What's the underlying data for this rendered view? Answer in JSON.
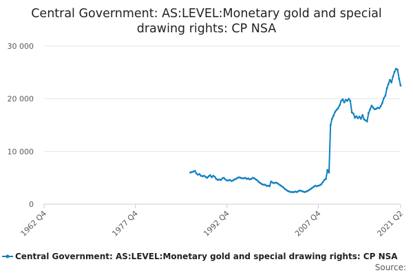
{
  "chart_data": {
    "type": "line",
    "title_lines": [
      "Central Government: AS:LEVEL:Monetary gold and special",
      "drawing rights: CP NSA"
    ],
    "xlabel": "",
    "ylabel": "",
    "x_range": [
      1962.75,
      2021.25
    ],
    "x_ticks": [
      {
        "label": "1962 Q4",
        "value": 1962.75
      },
      {
        "label": "1977 Q4",
        "value": 1977.75
      },
      {
        "label": "1992 Q4",
        "value": 1992.75
      },
      {
        "label": "2007 Q4",
        "value": 2007.75
      },
      {
        "label": "2021 Q2",
        "value": 2021.25
      }
    ],
    "ylim": [
      0,
      30000
    ],
    "y_ticks": [
      {
        "label": "0",
        "value": 0
      },
      {
        "label": "10 000",
        "value": 10000
      },
      {
        "label": "20 000",
        "value": 20000
      },
      {
        "label": "30 000",
        "value": 30000
      }
    ],
    "grid": "horizontal",
    "legend_position": "bottom",
    "series": [
      {
        "name": "Central Government: AS:LEVEL:Monetary gold and special drawing rights: CP NSA",
        "color": "#0f7fc0",
        "points": [
          [
            1986.75,
            6000
          ],
          [
            1987.0,
            6100
          ],
          [
            1987.25,
            6200
          ],
          [
            1987.5,
            6300
          ],
          [
            1987.75,
            5800
          ],
          [
            1988.0,
            5600
          ],
          [
            1988.25,
            5700
          ],
          [
            1988.5,
            5400
          ],
          [
            1988.75,
            5300
          ],
          [
            1989.0,
            5400
          ],
          [
            1989.25,
            5200
          ],
          [
            1989.5,
            5000
          ],
          [
            1989.75,
            5300
          ],
          [
            1990.0,
            5500
          ],
          [
            1990.25,
            5100
          ],
          [
            1990.5,
            5400
          ],
          [
            1990.75,
            5200
          ],
          [
            1991.0,
            4800
          ],
          [
            1991.25,
            4600
          ],
          [
            1991.5,
            4700
          ],
          [
            1991.75,
            4600
          ],
          [
            1992.0,
            4900
          ],
          [
            1992.25,
            5000
          ],
          [
            1992.5,
            4700
          ],
          [
            1992.75,
            4500
          ],
          [
            1993.0,
            4500
          ],
          [
            1993.25,
            4600
          ],
          [
            1993.5,
            4400
          ],
          [
            1993.75,
            4500
          ],
          [
            1994.0,
            4700
          ],
          [
            1994.25,
            4800
          ],
          [
            1994.5,
            5000
          ],
          [
            1994.75,
            5100
          ],
          [
            1995.0,
            5000
          ],
          [
            1995.25,
            4900
          ],
          [
            1995.5,
            4900
          ],
          [
            1995.75,
            5000
          ],
          [
            1996.0,
            4800
          ],
          [
            1996.25,
            4900
          ],
          [
            1996.5,
            4700
          ],
          [
            1996.75,
            4800
          ],
          [
            1997.0,
            5000
          ],
          [
            1997.25,
            4900
          ],
          [
            1997.5,
            4700
          ],
          [
            1997.75,
            4500
          ],
          [
            1998.0,
            4200
          ],
          [
            1998.25,
            4000
          ],
          [
            1998.5,
            3800
          ],
          [
            1998.75,
            3700
          ],
          [
            1999.0,
            3700
          ],
          [
            1999.25,
            3500
          ],
          [
            1999.5,
            3500
          ],
          [
            1999.75,
            3400
          ],
          [
            2000.0,
            4300
          ],
          [
            2000.25,
            4100
          ],
          [
            2000.5,
            4000
          ],
          [
            2000.75,
            4100
          ],
          [
            2001.0,
            4000
          ],
          [
            2001.25,
            3800
          ],
          [
            2001.5,
            3600
          ],
          [
            2001.75,
            3400
          ],
          [
            2002.0,
            3200
          ],
          [
            2002.25,
            2900
          ],
          [
            2002.5,
            2700
          ],
          [
            2002.75,
            2500
          ],
          [
            2003.0,
            2400
          ],
          [
            2003.25,
            2300
          ],
          [
            2003.5,
            2300
          ],
          [
            2003.75,
            2300
          ],
          [
            2004.0,
            2400
          ],
          [
            2004.25,
            2300
          ],
          [
            2004.5,
            2500
          ],
          [
            2004.75,
            2600
          ],
          [
            2005.0,
            2500
          ],
          [
            2005.25,
            2400
          ],
          [
            2005.5,
            2300
          ],
          [
            2005.75,
            2400
          ],
          [
            2006.0,
            2500
          ],
          [
            2006.25,
            2700
          ],
          [
            2006.5,
            2900
          ],
          [
            2006.75,
            3100
          ],
          [
            2007.0,
            3300
          ],
          [
            2007.25,
            3500
          ],
          [
            2007.5,
            3400
          ],
          [
            2007.75,
            3500
          ],
          [
            2008.0,
            3600
          ],
          [
            2008.25,
            3800
          ],
          [
            2008.5,
            4200
          ],
          [
            2008.75,
            4600
          ],
          [
            2009.0,
            4800
          ],
          [
            2009.25,
            6500
          ],
          [
            2009.5,
            6000
          ],
          [
            2009.75,
            15000
          ],
          [
            2010.0,
            16200
          ],
          [
            2010.25,
            16800
          ],
          [
            2010.5,
            17500
          ],
          [
            2010.75,
            17900
          ],
          [
            2011.0,
            18200
          ],
          [
            2011.25,
            18800
          ],
          [
            2011.5,
            19600
          ],
          [
            2011.75,
            19900
          ],
          [
            2012.0,
            19300
          ],
          [
            2012.25,
            19800
          ],
          [
            2012.5,
            19600
          ],
          [
            2012.75,
            20000
          ],
          [
            2013.0,
            19600
          ],
          [
            2013.25,
            17400
          ],
          [
            2013.5,
            17200
          ],
          [
            2013.75,
            16400
          ],
          [
            2014.0,
            16700
          ],
          [
            2014.25,
            16300
          ],
          [
            2014.5,
            16600
          ],
          [
            2014.75,
            16200
          ],
          [
            2015.0,
            16900
          ],
          [
            2015.25,
            16100
          ],
          [
            2015.5,
            15900
          ],
          [
            2015.75,
            15700
          ],
          [
            2016.0,
            17300
          ],
          [
            2016.25,
            18000
          ],
          [
            2016.5,
            18700
          ],
          [
            2016.75,
            18300
          ],
          [
            2017.0,
            18000
          ],
          [
            2017.25,
            18100
          ],
          [
            2017.5,
            18300
          ],
          [
            2017.75,
            18200
          ],
          [
            2018.0,
            18600
          ],
          [
            2018.25,
            19200
          ],
          [
            2018.5,
            20100
          ],
          [
            2018.75,
            20600
          ],
          [
            2019.0,
            22000
          ],
          [
            2019.25,
            22800
          ],
          [
            2019.5,
            23600
          ],
          [
            2019.75,
            23100
          ],
          [
            2020.0,
            24200
          ],
          [
            2020.25,
            25100
          ],
          [
            2020.5,
            25700
          ],
          [
            2020.75,
            25500
          ],
          [
            2021.0,
            23800
          ],
          [
            2021.25,
            22500
          ]
        ]
      }
    ],
    "source_label": "Source:"
  }
}
